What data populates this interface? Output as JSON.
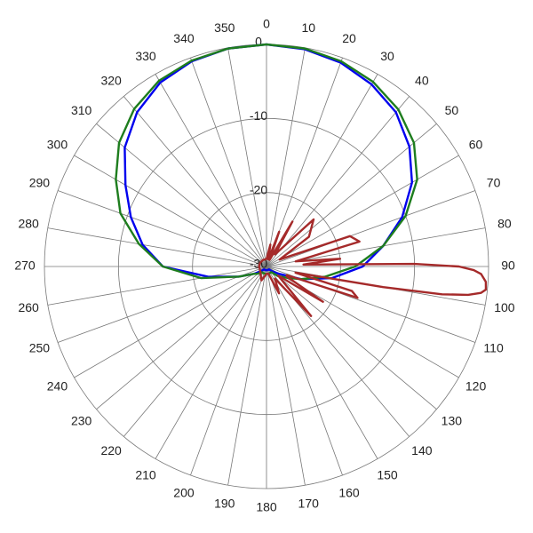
{
  "chart_data": {
    "type": "polar",
    "rlim": [
      -30,
      0
    ],
    "rticks": [
      0,
      -10,
      -20,
      -30
    ],
    "thetaticks": [
      0,
      10,
      20,
      30,
      40,
      50,
      60,
      70,
      80,
      90,
      100,
      110,
      120,
      130,
      140,
      150,
      160,
      170,
      180,
      190,
      200,
      210,
      220,
      230,
      240,
      250,
      260,
      270,
      280,
      290,
      300,
      310,
      320,
      330,
      340,
      350
    ],
    "grid": true,
    "series": [
      {
        "color": "#0000ee",
        "theta": [
          0,
          10,
          20,
          30,
          40,
          50,
          60,
          70,
          80,
          90,
          100,
          110,
          120,
          130,
          140,
          150,
          160,
          170,
          180,
          190,
          200,
          210,
          220,
          230,
          240,
          250,
          260,
          270,
          280,
          290,
          300,
          310,
          320,
          330,
          340,
          350
        ],
        "values": [
          0,
          -0.2,
          -0.7,
          -1.6,
          -2.8,
          -4.8,
          -7.3,
          -10.5,
          -14,
          -17,
          -21,
          -25,
          -28,
          -29,
          -29.5,
          -29.5,
          -29.5,
          -29.5,
          -29.5,
          -29.5,
          -29.5,
          -29.5,
          -29.5,
          -29,
          -28,
          -26,
          -22,
          -16,
          -13,
          -10.5,
          -8,
          -5,
          -2.8,
          -1.3,
          -0.5,
          -0.1
        ]
      },
      {
        "color": "#1e7d1e",
        "theta": [
          0,
          10,
          20,
          30,
          40,
          50,
          60,
          70,
          80,
          90,
          100,
          110,
          120,
          130,
          140,
          150,
          160,
          170,
          180,
          190,
          200,
          210,
          220,
          230,
          240,
          250,
          260,
          270,
          280,
          290,
          300,
          310,
          320,
          330,
          340,
          350
        ],
        "values": [
          0,
          -0.1,
          -0.5,
          -1.2,
          -2.3,
          -4,
          -6.5,
          -10,
          -14,
          -18,
          -22,
          -25,
          -27,
          -28,
          -29,
          -29,
          -29,
          -29,
          -29,
          -29,
          -29,
          -29,
          -29,
          -28.5,
          -28,
          -26,
          -21,
          -16,
          -12.5,
          -9,
          -6.5,
          -4,
          -2.2,
          -1,
          -0.4,
          -0.1
        ]
      },
      {
        "color": "#a52a2a",
        "theta": [
          0,
          10,
          15,
          20,
          25,
          30,
          35,
          45,
          55,
          62,
          70,
          75,
          80,
          84,
          87,
          89,
          90,
          91,
          92,
          94,
          96,
          97,
          98,
          99,
          100,
          102,
          106,
          109,
          113,
          116,
          122,
          128,
          138,
          145,
          155,
          165,
          180,
          200,
          240,
          270,
          300,
          330,
          355
        ],
        "values": [
          -29,
          -27,
          -29,
          -25,
          -29,
          -23,
          -28,
          -21,
          -23,
          -28,
          -18,
          -17,
          -26,
          -20,
          -25,
          -10,
          -4,
          -2,
          -1,
          -0.3,
          -0.2,
          -0.8,
          -2.5,
          -6,
          -14,
          -26,
          -18,
          -17,
          -27,
          -27,
          -21,
          -28,
          -21,
          -28,
          -26,
          -29,
          -29,
          -28,
          -29,
          -29,
          -29,
          -29,
          -29
        ]
      }
    ]
  }
}
